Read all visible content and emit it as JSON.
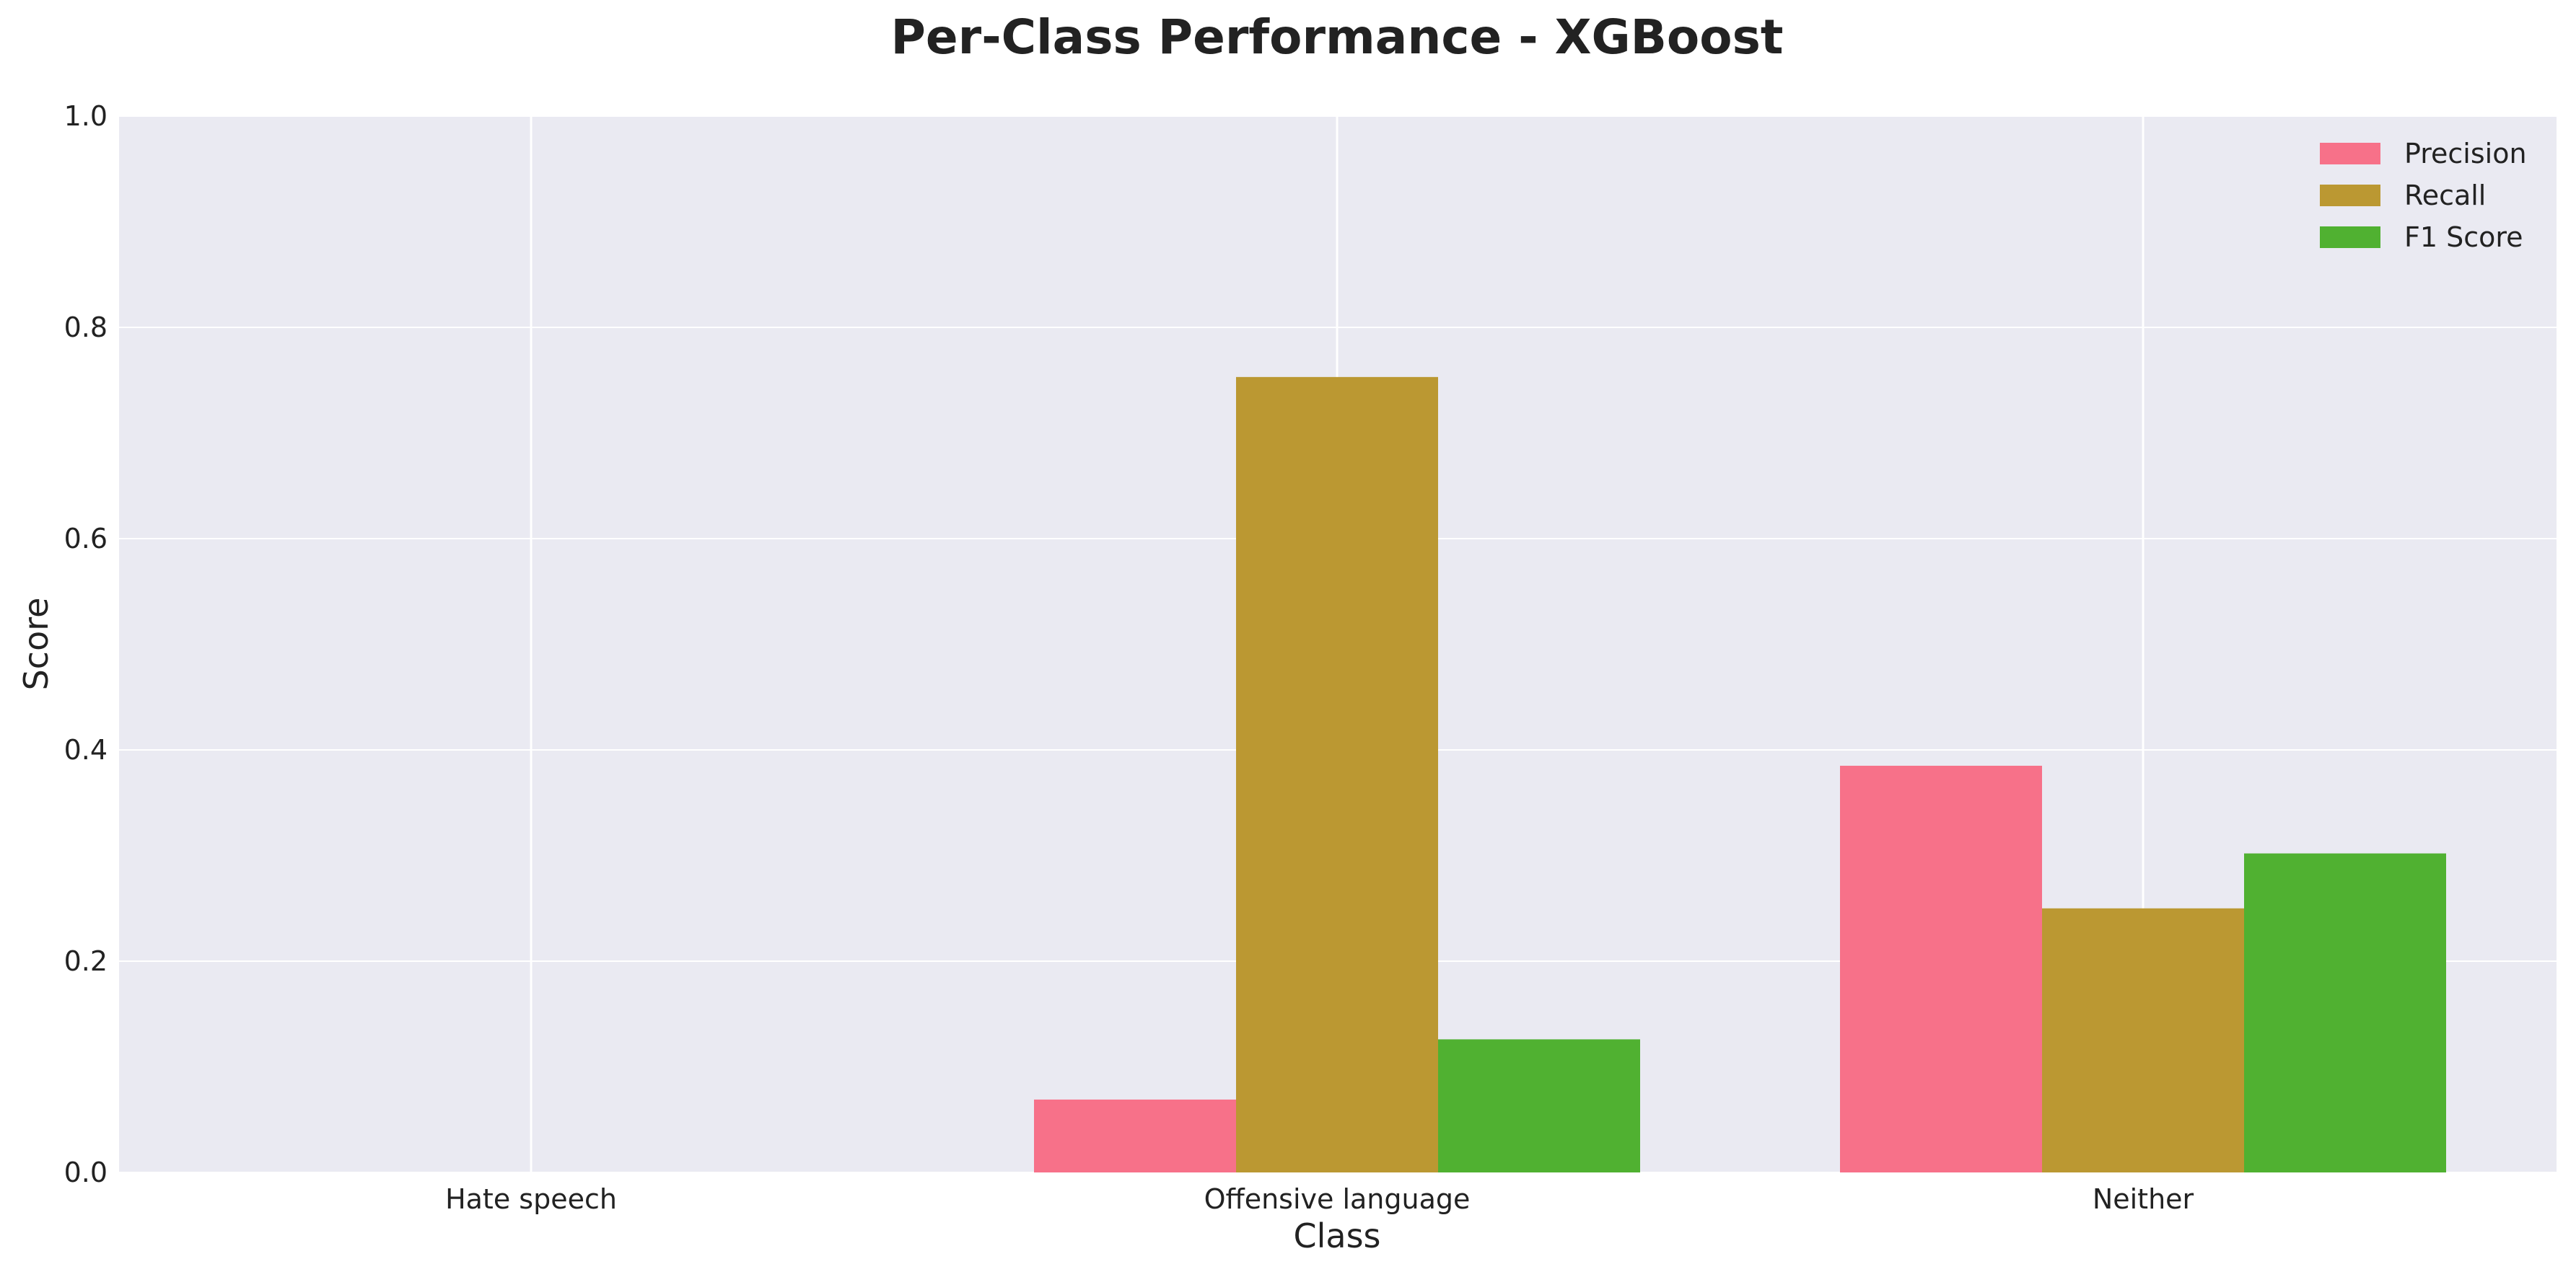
{
  "chart_data": {
    "type": "bar",
    "title": "Per-Class Performance - XGBoost",
    "xlabel": "Class",
    "ylabel": "Score",
    "categories": [
      "Hate speech",
      "Offensive language",
      "Neither"
    ],
    "series": [
      {
        "name": "Precision",
        "color": "#f77189",
        "values": [
          0.0,
          0.069,
          0.385
        ]
      },
      {
        "name": "Recall",
        "color": "#bb9832",
        "values": [
          0.0,
          0.753,
          0.25
        ]
      },
      {
        "name": "F1 Score",
        "color": "#50b131",
        "values": [
          0.0,
          0.126,
          0.302
        ]
      }
    ],
    "ylim": [
      0.0,
      1.0
    ],
    "yticks": [
      "0.0",
      "0.2",
      "0.4",
      "0.6",
      "0.8",
      "1.0"
    ],
    "grid": true,
    "legend_position": "top-right",
    "background_color": "#eaeaf2"
  }
}
